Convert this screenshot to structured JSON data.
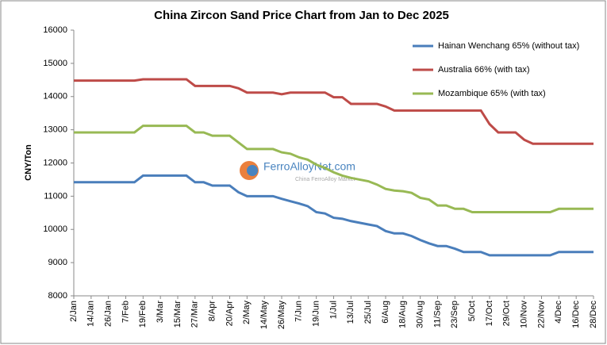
{
  "chart_data": {
    "type": "line",
    "title": "China Zircon Sand Price Chart from Jan to Dec 2025",
    "y_label": "CNY/Ton",
    "watermark": "FerroAlloyNet.com",
    "watermark_sub": "China FerroAlloy Market",
    "categories": [
      "2/Jan",
      null,
      "14/Jan",
      null,
      "26/Jan",
      null,
      "7/Feb",
      null,
      "19/Feb",
      null,
      "3/Mar",
      null,
      "15/Mar",
      null,
      "27/Mar",
      null,
      "8/Apr",
      null,
      "20/Apr",
      null,
      "2/May",
      null,
      "14/May",
      null,
      "26/May",
      null,
      "7/Jun",
      null,
      "19/Jun",
      null,
      "1/Jul",
      null,
      "13/Jul",
      null,
      "25/Jul",
      null,
      "6/Aug",
      null,
      "18/Aug",
      null,
      "30/Aug",
      null,
      "11/Sep",
      null,
      "23/Sep",
      null,
      "5/Oct",
      null,
      "17/Oct",
      null,
      "29/Oct",
      null,
      "10/Nov",
      null,
      "22/Nov",
      null,
      "4/Dec",
      null,
      "16/Dec",
      null,
      "28/Dec"
    ],
    "series": [
      {
        "name": "Hainan Wenchang 65% (without tax)",
        "color": "#4a7ebb",
        "values": [
          11420,
          11420,
          11420,
          11420,
          11420,
          11420,
          11420,
          11420,
          11620,
          11620,
          11620,
          11620,
          11620,
          11620,
          11420,
          11420,
          11320,
          11320,
          11320,
          11120,
          11000,
          11000,
          11000,
          11000,
          10920,
          10850,
          10780,
          10700,
          10520,
          10480,
          10350,
          10320,
          10250,
          10200,
          10150,
          10100,
          9950,
          9880,
          9880,
          9800,
          9680,
          9580,
          9500,
          9500,
          9420,
          9320,
          9320,
          9320,
          9220,
          9220,
          9220,
          9220,
          9220,
          9220,
          9220,
          9220,
          9320,
          9320,
          9320,
          9320,
          9320
        ]
      },
      {
        "name": "Australia 66% (with tax)",
        "color": "#be4b48",
        "values": [
          14480,
          14480,
          14480,
          14480,
          14480,
          14480,
          14480,
          14480,
          14520,
          14520,
          14520,
          14520,
          14520,
          14520,
          14320,
          14320,
          14320,
          14320,
          14320,
          14250,
          14120,
          14120,
          14120,
          14120,
          14070,
          14120,
          14120,
          14120,
          14120,
          14120,
          13980,
          13980,
          13780,
          13780,
          13780,
          13780,
          13700,
          13580,
          13580,
          13580,
          13580,
          13580,
          13580,
          13580,
          13580,
          13580,
          13580,
          13580,
          13170,
          12920,
          12920,
          12920,
          12700,
          12580,
          12580,
          12580,
          12580,
          12580,
          12580,
          12580,
          12580
        ]
      },
      {
        "name": "Mozambique 65% (with tax)",
        "color": "#98b954",
        "values": [
          12920,
          12920,
          12920,
          12920,
          12920,
          12920,
          12920,
          12920,
          13120,
          13120,
          13120,
          13120,
          13120,
          13120,
          12920,
          12920,
          12820,
          12820,
          12820,
          12620,
          12420,
          12420,
          12420,
          12420,
          12320,
          12280,
          12170,
          12100,
          11950,
          11850,
          11720,
          11620,
          11550,
          11500,
          11450,
          11350,
          11220,
          11170,
          11150,
          11100,
          10950,
          10900,
          10720,
          10720,
          10620,
          10620,
          10520,
          10520,
          10520,
          10520,
          10520,
          10520,
          10520,
          10520,
          10520,
          10520,
          10620,
          10620,
          10620,
          10620,
          10620
        ]
      }
    ],
    "ylim": [
      8000,
      16000
    ],
    "yticks": [
      8000,
      9000,
      10000,
      11000,
      12000,
      13000,
      14000,
      15000,
      16000
    ],
    "grid": false,
    "legend": "top-right"
  }
}
